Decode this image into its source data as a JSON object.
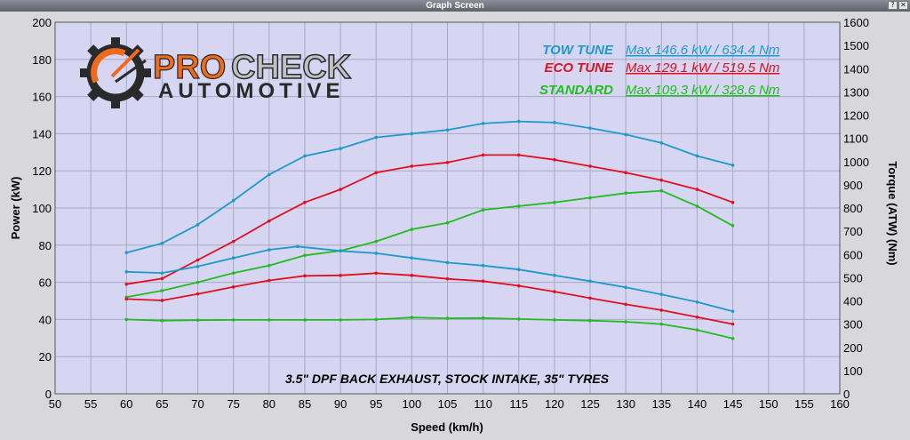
{
  "window": {
    "title": "Graph Screen"
  },
  "chart_data": {
    "type": "line",
    "title": "",
    "xlabel": "Speed (km/h)",
    "ylabel_left": "Power (kW)",
    "ylabel_right": "Torque (ATW) (Nm)",
    "xlim": [
      50,
      160
    ],
    "ylim_left": [
      0,
      200
    ],
    "ylim_right": [
      0,
      1600
    ],
    "x_ticks": [
      50,
      55,
      60,
      65,
      70,
      75,
      80,
      85,
      90,
      95,
      100,
      105,
      110,
      115,
      120,
      125,
      130,
      135,
      140,
      145,
      150,
      155,
      160
    ],
    "y_ticks_left": [
      0,
      20,
      40,
      60,
      80,
      100,
      120,
      140,
      160,
      180,
      200
    ],
    "y_ticks_right": [
      0,
      100,
      200,
      300,
      400,
      500,
      600,
      700,
      800,
      900,
      1000,
      1100,
      1200,
      1300,
      1400,
      1500,
      1600
    ],
    "grid": true,
    "legend_position": "top-right",
    "logo": {
      "line1_pro": "PRO",
      "line1_check": "CHECK",
      "line2": "AUTOMOTIVE"
    },
    "annotation": "3.5\" DPF BACK EXHAUST, STOCK INTAKE, 35\" TYRES",
    "legend": [
      {
        "name": "TOW TUNE",
        "max_text": "Max 146.6 kW  / 634.4 Nm",
        "color": "#1e9ac8"
      },
      {
        "name": "ECO TUNE",
        "max_text": "Max 129.1 kW  / 519.5 Nm",
        "color": "#e01020"
      },
      {
        "name": "STANDARD",
        "max_text": "Max 109.3 kW  / 328.6 Nm",
        "color": "#22bb22"
      }
    ],
    "series": [
      {
        "name": "TOW TUNE",
        "measure": "power",
        "axis": "left",
        "color": "#1e9ac8",
        "x": [
          60,
          65,
          70,
          75,
          80,
          85,
          90,
          95,
          100,
          105,
          110,
          115,
          120,
          125,
          130,
          135,
          140,
          145
        ],
        "y": [
          76,
          81,
          91,
          104,
          118,
          128,
          132,
          138,
          140,
          142,
          145.5,
          146.6,
          146,
          143,
          139.5,
          135,
          128,
          123
        ]
      },
      {
        "name": "ECO TUNE",
        "measure": "power",
        "axis": "left",
        "color": "#e01020",
        "x": [
          60,
          65,
          70,
          75,
          80,
          85,
          90,
          95,
          100,
          105,
          110,
          115,
          120,
          125,
          130,
          135,
          140,
          145
        ],
        "y": [
          59,
          62,
          72,
          82,
          93,
          103,
          110,
          119,
          122.5,
          124.5,
          128.5,
          128.5,
          126,
          122.5,
          119,
          115,
          110,
          103
        ]
      },
      {
        "name": "STANDARD",
        "measure": "power",
        "axis": "left",
        "color": "#22bb22",
        "x": [
          60,
          65,
          70,
          75,
          80,
          85,
          90,
          95,
          100,
          105,
          110,
          115,
          120,
          125,
          130,
          135,
          140,
          145
        ],
        "y": [
          52,
          55.5,
          60,
          65,
          69,
          74.5,
          77,
          82,
          88.5,
          92,
          99,
          101,
          103,
          105.5,
          108,
          109.3,
          101,
          90.5
        ]
      },
      {
        "name": "TOW TUNE",
        "measure": "torque",
        "axis": "right",
        "color": "#1e9ac8",
        "x": [
          60,
          65,
          70,
          75,
          80,
          84,
          90,
          95,
          100,
          105,
          110,
          115,
          120,
          125,
          130,
          135,
          140,
          145
        ],
        "y": [
          525,
          520,
          548,
          585,
          620,
          634.4,
          615,
          605,
          585,
          565,
          552,
          535,
          510,
          485,
          458,
          428,
          395,
          355
        ]
      },
      {
        "name": "ECO TUNE",
        "measure": "torque",
        "axis": "right",
        "color": "#e01020",
        "x": [
          60,
          65,
          70,
          75,
          80,
          85,
          90,
          95,
          100,
          105,
          110,
          115,
          120,
          125,
          130,
          135,
          140,
          145
        ],
        "y": [
          408,
          402,
          430,
          460,
          488,
          508,
          510,
          519.5,
          510,
          495,
          485,
          465,
          440,
          412,
          385,
          360,
          330,
          300
        ]
      },
      {
        "name": "STANDARD",
        "measure": "torque",
        "axis": "right",
        "color": "#22bb22",
        "x": [
          60,
          65,
          70,
          75,
          80,
          85,
          90,
          95,
          100,
          105,
          110,
          115,
          120,
          125,
          130,
          135,
          140,
          145
        ],
        "y": [
          320,
          315,
          317,
          318,
          318,
          318,
          318,
          320,
          328.6,
          325,
          326,
          322,
          318,
          315,
          310,
          300,
          275,
          238
        ]
      }
    ]
  }
}
